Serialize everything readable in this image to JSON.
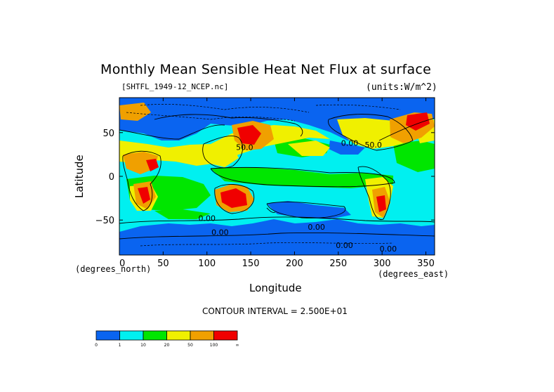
{
  "chart_data": {
    "type": "heatmap",
    "title": "Monthly Mean Sensible Heat Net Flux at surface",
    "file": "[SHTFL_1949-12_NCEP.nc]",
    "units": "(units:W/m^2)",
    "xlabel": "Longitude",
    "ylabel": "Latitude",
    "x_unit": "(degrees_north)",
    "x_unit_east": "(degrees_east)",
    "xlim": [
      0,
      360
    ],
    "ylim": [
      -90,
      90
    ],
    "x_ticks": [
      {
        "value": 0,
        "label": "0"
      },
      {
        "value": 50,
        "label": "50"
      },
      {
        "value": 100,
        "label": "100"
      },
      {
        "value": 150,
        "label": "150"
      },
      {
        "value": 200,
        "label": "200"
      },
      {
        "value": 250,
        "label": "250"
      },
      {
        "value": 300,
        "label": "300"
      },
      {
        "value": 350,
        "label": "350"
      }
    ],
    "y_ticks": [
      {
        "value": 50,
        "label": "50"
      },
      {
        "value": 0,
        "label": "0"
      },
      {
        "value": -50,
        "label": "−50"
      }
    ],
    "contour_interval": "CONTOUR INTERVAL = 2.500E+01",
    "colorbar": {
      "levels": [
        "0",
        "1",
        "10",
        "20",
        "50",
        "100",
        "∞"
      ],
      "colors": [
        "#0a64f0",
        "#00f0f0",
        "#00e600",
        "#f0f000",
        "#f0a000",
        "#f00000"
      ]
    },
    "contour_annotations": [
      {
        "lon": 143,
        "lat": 30,
        "label": "50.0"
      },
      {
        "lon": 263,
        "lat": 35,
        "label": "0.00"
      },
      {
        "lon": 290,
        "lat": 33,
        "label": "50.0"
      },
      {
        "lon": 100,
        "lat": -51,
        "label": "0.00"
      },
      {
        "lon": 115,
        "lat": -67,
        "label": "0.00"
      },
      {
        "lon": 225,
        "lat": -61,
        "label": "0.00"
      },
      {
        "lon": 257,
        "lat": -82,
        "label": "0.00"
      },
      {
        "lon": 307,
        "lat": -86,
        "label": "0.00"
      }
    ]
  }
}
